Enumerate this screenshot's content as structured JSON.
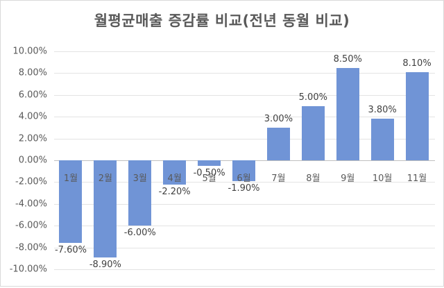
{
  "chart_data": {
    "type": "bar",
    "title": "월평균매출 증감률 비교(전년 동월 비교)",
    "xlabel": "",
    "ylabel": "",
    "categories": [
      "1월",
      "2월",
      "3월",
      "4월",
      "5월",
      "6월",
      "7월",
      "8월",
      "9월",
      "10월",
      "11월"
    ],
    "values": [
      -7.6,
      -8.9,
      -6.0,
      -2.2,
      -0.5,
      -1.9,
      3.0,
      5.0,
      8.5,
      3.8,
      8.1
    ],
    "data_labels": [
      "-7.60%",
      "-8.90%",
      "-6.00%",
      "-2.20%",
      "-0.50%",
      "-1.90%",
      "3.00%",
      "5.00%",
      "8.50%",
      "3.80%",
      "8.10%"
    ],
    "ylim": [
      -10,
      10
    ],
    "y_ticks": [
      "10.00%",
      "8.00%",
      "6.00%",
      "4.00%",
      "2.00%",
      "0.00%",
      "-2.00%",
      "-4.00%",
      "-6.00%",
      "-8.00%",
      "-10.00%"
    ],
    "y_tick_values": [
      10,
      8,
      6,
      4,
      2,
      0,
      -2,
      -4,
      -6,
      -8,
      -10
    ],
    "grid": true,
    "legend": "none",
    "bar_color": "#7094d6"
  }
}
